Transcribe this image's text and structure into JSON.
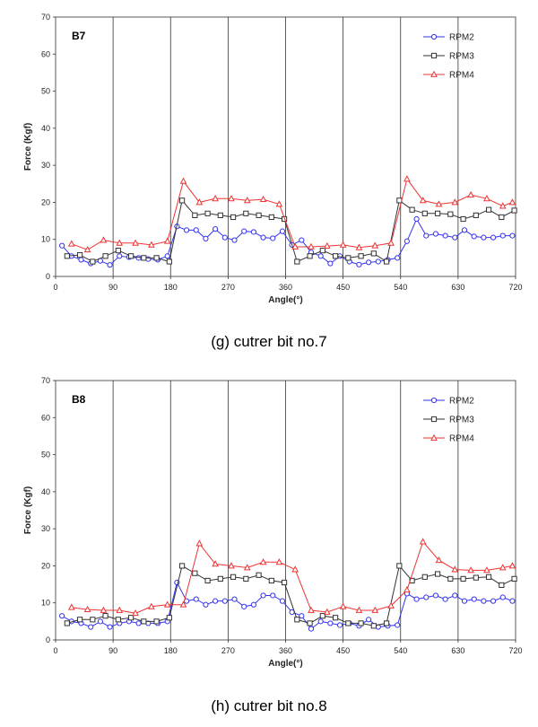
{
  "captions": [
    "(g)  cutrer  bit  no.7",
    "(h)  cutrer  bit  no.8"
  ],
  "chart_data": [
    {
      "type": "line",
      "title": "B7",
      "xlabel": "Angle(°)",
      "ylabel": "Force (Kgf)",
      "xlim": [
        0,
        720
      ],
      "ylim": [
        0,
        70
      ],
      "xticks": [
        0,
        90,
        180,
        270,
        360,
        450,
        540,
        630,
        720
      ],
      "yticks": [
        0,
        10,
        20,
        30,
        40,
        50,
        60,
        70
      ],
      "vertical_grid": true,
      "legend_position": "top-right",
      "series": [
        {
          "name": "RPM2",
          "color": "#3333ee",
          "marker": "circle",
          "x": [
            10,
            25,
            40,
            55,
            70,
            85,
            100,
            115,
            130,
            145,
            160,
            175,
            190,
            205,
            220,
            235,
            250,
            265,
            280,
            295,
            310,
            325,
            340,
            355,
            370,
            385,
            400,
            415,
            430,
            445,
            460,
            475,
            490,
            505,
            520,
            535,
            550,
            565,
            580,
            595,
            610,
            625,
            640,
            655,
            670,
            685,
            700,
            715
          ],
          "y": [
            8.3,
            5.5,
            4.5,
            3.5,
            4.2,
            3.1,
            5.5,
            5.2,
            5,
            4.7,
            4.5,
            5.5,
            13.5,
            12.5,
            12.5,
            10.2,
            12.8,
            10.5,
            9.8,
            12.2,
            12,
            10.5,
            10.3,
            12.2,
            8.5,
            9.8,
            6.5,
            5.5,
            3.5,
            5.5,
            4,
            3.2,
            3.8,
            4,
            4.5,
            5,
            9.5,
            15.5,
            11,
            11.5,
            11,
            10.5,
            12.5,
            10.8,
            10.5,
            10.5,
            11,
            11
          ]
        },
        {
          "name": "RPM3",
          "color": "#333333",
          "marker": "square",
          "x": [
            18,
            38,
            58,
            78,
            98,
            118,
            138,
            158,
            178,
            198,
            218,
            238,
            258,
            278,
            298,
            318,
            338,
            358,
            378,
            398,
            418,
            438,
            458,
            478,
            498,
            518,
            538,
            558,
            578,
            598,
            618,
            638,
            658,
            678,
            698,
            718
          ],
          "y": [
            5.5,
            5.8,
            4,
            5.5,
            7,
            5.5,
            5,
            5,
            4,
            20.5,
            16.5,
            17,
            16.5,
            16,
            17,
            16.5,
            16,
            15.5,
            4,
            5.5,
            7,
            5.5,
            5,
            5.5,
            6.2,
            4,
            20.5,
            18,
            17,
            17,
            16.8,
            15.5,
            16.5,
            18,
            16,
            17.8
          ]
        },
        {
          "name": "RPM4",
          "color": "#ee3333",
          "marker": "triangle",
          "x": [
            25,
            50,
            75,
            100,
            125,
            150,
            175,
            200,
            225,
            250,
            275,
            300,
            325,
            350,
            375,
            400,
            425,
            450,
            475,
            500,
            525,
            550,
            575,
            600,
            625,
            650,
            675,
            700,
            715
          ],
          "y": [
            8.8,
            7.2,
            9.8,
            9,
            9,
            8.5,
            9.5,
            25.7,
            20,
            21,
            21,
            20.5,
            20.8,
            19.5,
            8,
            8,
            8.2,
            8.5,
            7.8,
            8.3,
            9,
            26.3,
            20.5,
            19.5,
            20,
            22,
            21,
            19,
            20
          ]
        }
      ]
    },
    {
      "type": "line",
      "title": "B8",
      "xlabel": "Angle(°)",
      "ylabel": "Force (Kgf)",
      "xlim": [
        0,
        720
      ],
      "ylim": [
        0,
        70
      ],
      "xticks": [
        0,
        90,
        180,
        270,
        360,
        450,
        540,
        630,
        720
      ],
      "yticks": [
        0,
        10,
        20,
        30,
        40,
        50,
        60,
        70
      ],
      "vertical_grid": true,
      "legend_position": "top-right",
      "series": [
        {
          "name": "RPM2",
          "color": "#3333ee",
          "marker": "circle",
          "x": [
            10,
            25,
            40,
            55,
            70,
            85,
            100,
            115,
            130,
            145,
            160,
            175,
            190,
            205,
            220,
            235,
            250,
            265,
            280,
            295,
            310,
            325,
            340,
            355,
            370,
            385,
            400,
            415,
            430,
            445,
            460,
            475,
            490,
            505,
            520,
            535,
            550,
            565,
            580,
            595,
            610,
            625,
            640,
            655,
            670,
            685,
            700,
            715
          ],
          "y": [
            6.5,
            5,
            4.5,
            3.5,
            5,
            3.5,
            4.5,
            5,
            4.5,
            4.5,
            4.5,
            5,
            15.5,
            10.5,
            11,
            9.5,
            10.5,
            10.5,
            11,
            9,
            9.5,
            12,
            12,
            10.5,
            7.5,
            6.5,
            3,
            5,
            4.5,
            4,
            4.5,
            3.8,
            5.5,
            3.5,
            3.8,
            4,
            12.5,
            11,
            11.5,
            12,
            11,
            12,
            10.5,
            11,
            10.5,
            10.5,
            11.5,
            10.5
          ]
        },
        {
          "name": "RPM3",
          "color": "#333333",
          "marker": "square",
          "x": [
            18,
            38,
            58,
            78,
            98,
            118,
            138,
            158,
            178,
            198,
            218,
            238,
            258,
            278,
            298,
            318,
            338,
            358,
            378,
            398,
            418,
            438,
            458,
            478,
            498,
            518,
            538,
            558,
            578,
            598,
            618,
            638,
            658,
            678,
            698,
            718
          ],
          "y": [
            4.5,
            5.5,
            5.5,
            6.5,
            5.5,
            6,
            5,
            5,
            6,
            20,
            18,
            16,
            16.5,
            17,
            16.5,
            17.5,
            16,
            15.5,
            5.5,
            4.5,
            6.5,
            6,
            4.5,
            4.5,
            3.8,
            4.5,
            20,
            16,
            17,
            17.8,
            16.5,
            16.5,
            16.8,
            17,
            14.8,
            16.5
          ]
        },
        {
          "name": "RPM4",
          "color": "#ee3333",
          "marker": "triangle",
          "x": [
            25,
            50,
            75,
            100,
            125,
            150,
            175,
            200,
            225,
            250,
            275,
            300,
            325,
            350,
            375,
            400,
            425,
            450,
            475,
            500,
            525,
            550,
            575,
            600,
            625,
            650,
            675,
            700,
            715
          ],
          "y": [
            8.8,
            8.2,
            8,
            8,
            7.2,
            9,
            9.5,
            9.5,
            26,
            20.5,
            20,
            19.5,
            21,
            21,
            19,
            8,
            7.5,
            9,
            8,
            8,
            9.2,
            13.5,
            26.5,
            21.5,
            19,
            18.8,
            18.8,
            19.5,
            20
          ]
        }
      ]
    }
  ]
}
